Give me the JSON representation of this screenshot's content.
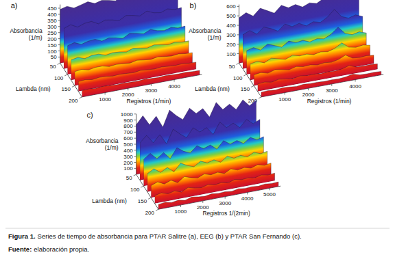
{
  "chart_data": [
    {
      "type": "surface",
      "title": "a)",
      "z_label": "Absorbancia (1/m)",
      "y_label": "Lambda (nm)",
      "x_label": "Registros (1/min)",
      "x": [
        0,
        300,
        600,
        900,
        1200,
        1500,
        1800,
        2100,
        2400,
        2700,
        3000,
        3300,
        3600,
        3900,
        4200,
        4500,
        4800,
        5100
      ],
      "y": [
        50,
        75,
        100,
        125,
        150,
        175,
        200
      ],
      "z": [
        [
          440,
          455,
          430,
          445,
          460,
          435,
          450,
          440,
          425,
          450,
          445,
          430,
          455,
          440,
          435,
          445,
          430,
          440
        ],
        [
          330,
          350,
          320,
          340,
          345,
          315,
          335,
          325,
          310,
          340,
          330,
          315,
          345,
          320,
          310,
          330,
          315,
          320
        ],
        [
          235,
          250,
          225,
          240,
          245,
          220,
          235,
          225,
          210,
          240,
          230,
          215,
          240,
          220,
          210,
          225,
          210,
          215
        ],
        [
          165,
          175,
          155,
          170,
          170,
          150,
          160,
          155,
          145,
          165,
          155,
          145,
          160,
          150,
          140,
          150,
          140,
          140
        ],
        [
          115,
          122,
          108,
          118,
          118,
          104,
          110,
          106,
          100,
          112,
          104,
          98,
          108,
          100,
          94,
          100,
          92,
          90
        ],
        [
          80,
          84,
          75,
          82,
          80,
          72,
          76,
          72,
          68,
          76,
          70,
          66,
          72,
          67,
          63,
          66,
          60,
          58
        ],
        [
          52,
          55,
          49,
          54,
          52,
          47,
          49,
          46,
          44,
          49,
          45,
          42,
          46,
          43,
          40,
          42,
          38,
          36
        ]
      ],
      "xlim": [
        0,
        5200
      ],
      "xticks": [
        1000,
        2000,
        3000,
        4000
      ],
      "ylim": [
        50,
        200
      ],
      "yticks": [
        50,
        100,
        150,
        200
      ],
      "zlim": [
        0,
        480
      ],
      "zticks": [
        50,
        100,
        150,
        200,
        250,
        300,
        350,
        400,
        450
      ]
    },
    {
      "type": "surface",
      "title": "b)",
      "z_label": "Absorbancia (1/m)",
      "y_label": "Lambda (nm)",
      "x_label": "Registros (1/min)",
      "x": [
        0,
        300,
        600,
        900,
        1200,
        1500,
        1800,
        2100,
        2400,
        2700,
        3000,
        3300,
        3600,
        3900,
        4200,
        4500,
        4800,
        5100
      ],
      "y": [
        50,
        75,
        100,
        125,
        150,
        175,
        200
      ],
      "z": [
        [
          480,
          520,
          470,
          540,
          500,
          460,
          530,
          490,
          510,
          470,
          500,
          480,
          520,
          590,
          500,
          470,
          490,
          460
        ],
        [
          360,
          390,
          340,
          400,
          370,
          330,
          390,
          350,
          370,
          330,
          360,
          340,
          380,
          450,
          360,
          330,
          350,
          320
        ],
        [
          250,
          270,
          230,
          280,
          250,
          220,
          270,
          240,
          250,
          220,
          240,
          225,
          260,
          320,
          240,
          215,
          230,
          205
        ],
        [
          170,
          185,
          155,
          190,
          170,
          150,
          180,
          160,
          165,
          145,
          160,
          148,
          170,
          215,
          155,
          140,
          150,
          135
        ],
        [
          115,
          125,
          105,
          128,
          115,
          100,
          120,
          106,
          110,
          96,
          105,
          97,
          112,
          145,
          100,
          92,
          98,
          88
        ],
        [
          78,
          84,
          70,
          86,
          76,
          66,
          80,
          70,
          72,
          63,
          69,
          63,
          73,
          95,
          65,
          60,
          63,
          57
        ],
        [
          50,
          55,
          46,
          56,
          50,
          43,
          52,
          46,
          47,
          41,
          45,
          41,
          48,
          62,
          42,
          39,
          41,
          37
        ]
      ],
      "xlim": [
        0,
        5200
      ],
      "xticks": [
        1000,
        2000,
        3000,
        4000
      ],
      "ylim": [
        50,
        200
      ],
      "yticks": [
        50,
        100,
        150,
        200
      ],
      "zlim": [
        0,
        620
      ],
      "zticks": [
        100,
        200,
        300,
        400,
        500,
        600
      ]
    },
    {
      "type": "surface",
      "title": "c)",
      "z_label": "Absorbancia (1/m)",
      "y_label": "Lambda (nm)",
      "x_label": "Registros 1/(2min)",
      "x": [
        0,
        300,
        600,
        900,
        1200,
        1500,
        1800,
        2100,
        2400,
        2700,
        3000,
        3300,
        3600,
        3900,
        4200,
        4500,
        4800,
        5100,
        5400
      ],
      "y": [
        50,
        75,
        100,
        125,
        150,
        175,
        200
      ],
      "z": [
        [
          820,
          950,
          780,
          900,
          700,
          960,
          850,
          760,
          930,
          820,
          880,
          720,
          940,
          800,
          870,
          760,
          900,
          780,
          850
        ],
        [
          620,
          720,
          580,
          690,
          520,
          740,
          640,
          560,
          700,
          610,
          660,
          530,
          710,
          600,
          650,
          560,
          670,
          580,
          630
        ],
        [
          440,
          520,
          410,
          490,
          370,
          530,
          450,
          400,
          500,
          430,
          470,
          380,
          500,
          420,
          460,
          390,
          470,
          410,
          440
        ],
        [
          300,
          360,
          280,
          340,
          250,
          370,
          310,
          270,
          340,
          290,
          320,
          260,
          340,
          285,
          310,
          265,
          320,
          275,
          295
        ],
        [
          200,
          240,
          185,
          225,
          165,
          245,
          205,
          180,
          225,
          190,
          210,
          170,
          225,
          185,
          205,
          175,
          210,
          180,
          195
        ],
        [
          130,
          155,
          120,
          145,
          105,
          160,
          130,
          115,
          145,
          120,
          135,
          110,
          145,
          120,
          130,
          110,
          135,
          115,
          125
        ],
        [
          80,
          95,
          72,
          88,
          65,
          98,
          80,
          70,
          88,
          74,
          82,
          67,
          88,
          73,
          80,
          68,
          82,
          70,
          76
        ]
      ],
      "xlim": [
        0,
        5500
      ],
      "xticks": [
        1000,
        2000,
        3000,
        4000,
        5000
      ],
      "ylim": [
        50,
        200
      ],
      "yticks": [
        50,
        100,
        150,
        200
      ],
      "zlim": [
        0,
        1000
      ],
      "zticks": [
        100,
        200,
        300,
        400,
        500,
        600,
        700,
        800,
        900,
        1000
      ]
    }
  ],
  "caption": {
    "label": "Figura 1.",
    "text": "Series de tiempo de absorbancia para PTAR Salitre (a), EEG (b) y PTAR San Fernando (c)."
  },
  "source": {
    "label": "Fuente:",
    "text": "elaboración propia."
  }
}
